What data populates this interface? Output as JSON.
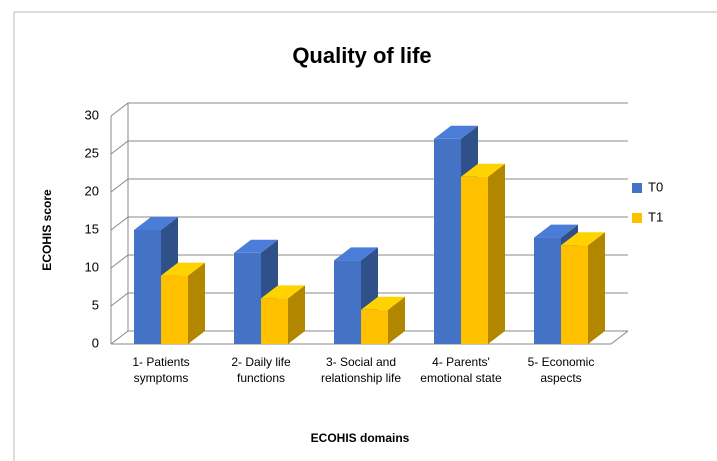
{
  "chart_data": {
    "type": "bar",
    "title": "Quality of life",
    "x_label": "ECOHIS domains",
    "y_label": "ECOHIS score",
    "categories": [
      "1- Patients symptoms",
      "2- Daily life functions",
      "3- Social and relationship life",
      "4- Parents' emotional state",
      "5- Economic aspects"
    ],
    "series": [
      {
        "name": "T0",
        "color": "#4472c4",
        "values": [
          15,
          12,
          11,
          27,
          14
        ]
      },
      {
        "name": "T1",
        "color": "#ffc000",
        "values": [
          9,
          6,
          4.5,
          22,
          13
        ]
      }
    ],
    "ylim": [
      0,
      30
    ],
    "yticks": [
      0,
      5,
      10,
      15,
      20,
      25,
      30
    ],
    "grid": true,
    "legend": "right"
  }
}
